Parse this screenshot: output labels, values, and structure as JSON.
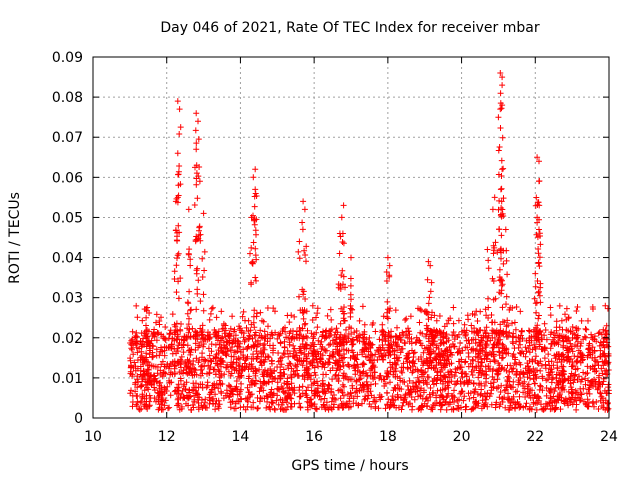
{
  "chart_data": {
    "type": "scatter",
    "title": "Day 046 of 2021, Rate Of TEC Index for receiver mbar",
    "xlabel": "GPS time / hours",
    "ylabel": "ROTI / TECUs",
    "xlim": [
      10,
      24
    ],
    "ylim": [
      0,
      0.09
    ],
    "xticks": [
      "10",
      "12",
      "14",
      "16",
      "18",
      "20",
      "22",
      "24"
    ],
    "yticks": [
      "0",
      "0.01",
      "0.02",
      "0.03",
      "0.04",
      "0.05",
      "0.06",
      "0.07",
      "0.08",
      "0.09"
    ],
    "grid": true,
    "marker": "+",
    "color": "#ff0000",
    "series": [
      {
        "name": "ROTI",
        "x_range": [
          11.0,
          24.0
        ],
        "typical_range": [
          0.002,
          0.022
        ],
        "notable_points": [
          {
            "x": 12.3,
            "y": 0.079
          },
          {
            "x": 12.35,
            "y": 0.077
          },
          {
            "x": 12.3,
            "y": 0.066
          },
          {
            "x": 12.25,
            "y": 0.054
          },
          {
            "x": 12.8,
            "y": 0.076
          },
          {
            "x": 12.85,
            "y": 0.074
          },
          {
            "x": 12.8,
            "y": 0.067
          },
          {
            "x": 12.9,
            "y": 0.059
          },
          {
            "x": 12.6,
            "y": 0.052
          },
          {
            "x": 13.0,
            "y": 0.051
          },
          {
            "x": 14.4,
            "y": 0.062
          },
          {
            "x": 14.35,
            "y": 0.06
          },
          {
            "x": 14.4,
            "y": 0.057
          },
          {
            "x": 14.3,
            "y": 0.05
          },
          {
            "x": 15.7,
            "y": 0.054
          },
          {
            "x": 15.75,
            "y": 0.052
          },
          {
            "x": 15.6,
            "y": 0.044
          },
          {
            "x": 16.8,
            "y": 0.053
          },
          {
            "x": 16.75,
            "y": 0.05
          },
          {
            "x": 16.7,
            "y": 0.046
          },
          {
            "x": 17.0,
            "y": 0.04
          },
          {
            "x": 18.0,
            "y": 0.04
          },
          {
            "x": 18.05,
            "y": 0.038
          },
          {
            "x": 19.1,
            "y": 0.039
          },
          {
            "x": 19.15,
            "y": 0.038
          },
          {
            "x": 21.05,
            "y": 0.086
          },
          {
            "x": 21.1,
            "y": 0.085
          },
          {
            "x": 21.1,
            "y": 0.083
          },
          {
            "x": 21.05,
            "y": 0.077
          },
          {
            "x": 21.0,
            "y": 0.075
          },
          {
            "x": 21.1,
            "y": 0.062
          },
          {
            "x": 20.9,
            "y": 0.055
          },
          {
            "x": 20.85,
            "y": 0.052
          },
          {
            "x": 21.2,
            "y": 0.047
          },
          {
            "x": 20.7,
            "y": 0.042
          },
          {
            "x": 22.05,
            "y": 0.065
          },
          {
            "x": 22.1,
            "y": 0.064
          },
          {
            "x": 22.1,
            "y": 0.059
          },
          {
            "x": 22.05,
            "y": 0.05
          },
          {
            "x": 22.1,
            "y": 0.047
          },
          {
            "x": 22.0,
            "y": 0.036
          },
          {
            "x": 23.9,
            "y": 0.028
          }
        ]
      }
    ]
  }
}
